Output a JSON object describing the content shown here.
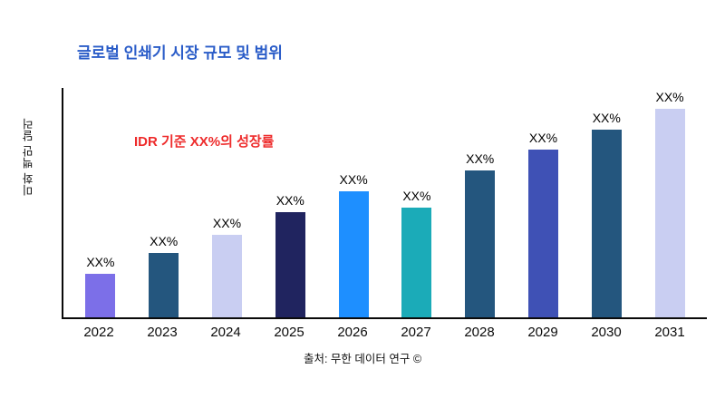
{
  "chart_data": {
    "type": "bar",
    "title": "글로벌 인쇄기 시장 규모 및 범위",
    "ylabel": "미화 백만 달러",
    "xlabel": "",
    "annotation": "IDR 기준 XX%의 성장률",
    "source": "출처: 무한 데이터 연구 ©",
    "categories": [
      "2022",
      "2023",
      "2024",
      "2025",
      "2026",
      "2027",
      "2028",
      "2029",
      "2030",
      "2031"
    ],
    "values": [
      19,
      28,
      36,
      46,
      55,
      48,
      64,
      73,
      82,
      91
    ],
    "bar_labels": [
      "XX%",
      "XX%",
      "XX%",
      "XX%",
      "XX%",
      "XX%",
      "XX%",
      "XX%",
      "XX%",
      "XX%"
    ],
    "bar_colors": [
      "#7C6FE8",
      "#24567E",
      "#C9CEF2",
      "#20245F",
      "#1E8FFF",
      "#1BABB8",
      "#24567E",
      "#3F51B5",
      "#24567E",
      "#C9CEF2"
    ],
    "ylim": [
      0,
      100
    ],
    "grid": false,
    "legend": null
  },
  "colors": {
    "title": "#2A5CC8",
    "annotation": "#EE2B2B",
    "axis": "#0a0a0a",
    "background": "#ffffff"
  }
}
